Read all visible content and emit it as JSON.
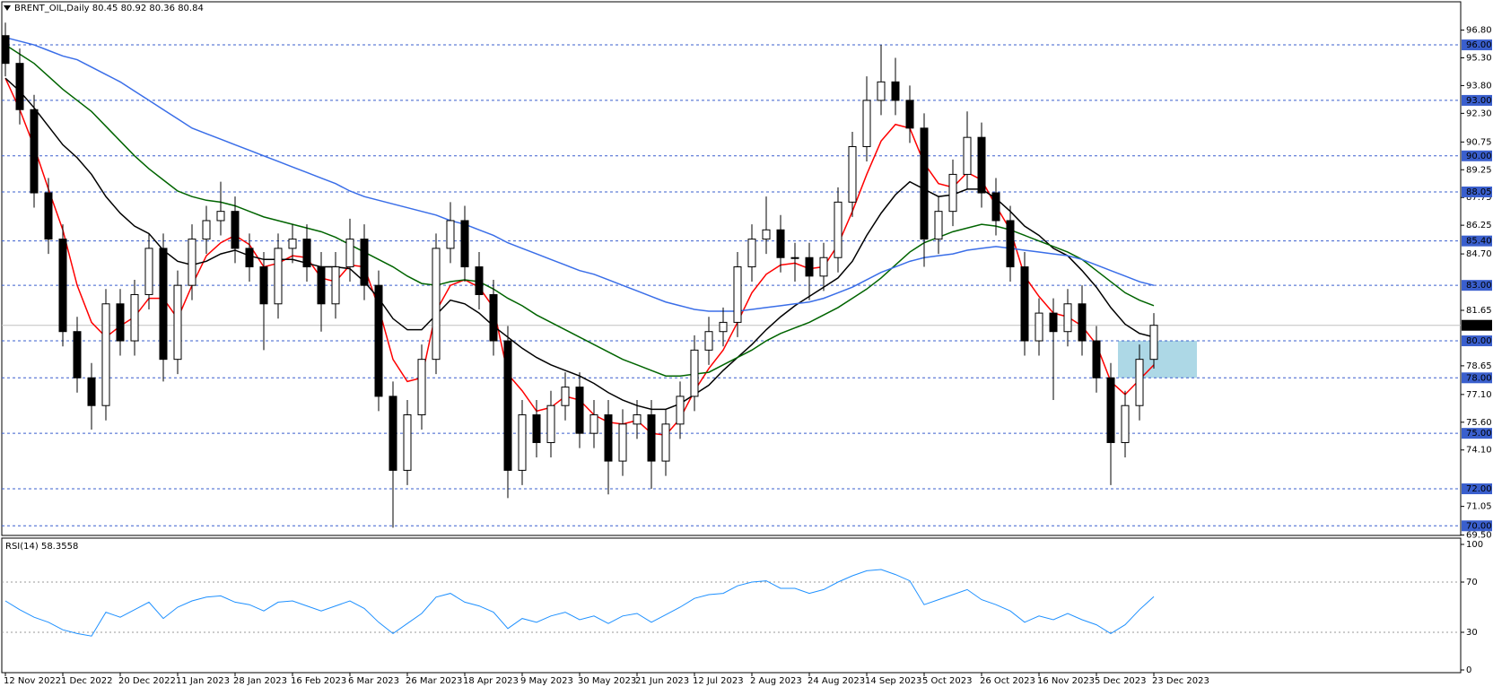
{
  "chart_data": {
    "type": "candlestick",
    "title": "BRENT_OIL,Daily 80.45 80.92 80.36 80.84",
    "categories": [
      "12 Nov 2022",
      null,
      null,
      null,
      "1 Dec 2022",
      null,
      null,
      null,
      "20 Dec 2022",
      null,
      null,
      null,
      "11 Jan 2023",
      null,
      null,
      null,
      "28 Jan 2023",
      null,
      null,
      null,
      "16 Feb 2023",
      null,
      null,
      null,
      "6 Mar 2023",
      null,
      null,
      null,
      "26 Mar 2023",
      null,
      null,
      null,
      "18 Apr 2023",
      null,
      null,
      null,
      "9 May 2023",
      null,
      null,
      null,
      "30 May 2023",
      null,
      null,
      null,
      "21 Jun 2023",
      null,
      null,
      null,
      "12 Jul 2023",
      null,
      null,
      null,
      "2 Aug 2023",
      null,
      null,
      null,
      "24 Aug 2023",
      null,
      null,
      null,
      "14 Sep 2023",
      null,
      null,
      null,
      "5 Oct 2023",
      null,
      null,
      null,
      "26 Oct 2023",
      null,
      null,
      null,
      "16 Nov 2023",
      null,
      null,
      null,
      "5 Dec 2023",
      null,
      null,
      null,
      "23 Dec 2023"
    ],
    "open": [
      96.5,
      95.0,
      92.5,
      88.0,
      85.5,
      80.5,
      78.0,
      76.5,
      82.0,
      80.0,
      82.5,
      85.0,
      79.0,
      83.0,
      85.5,
      86.5,
      87.0,
      85.0,
      84.0,
      82.0,
      85.0,
      85.5,
      84.0,
      82.0,
      84.0,
      85.5,
      83.0,
      77.0,
      73.0,
      76.0,
      79.0,
      85.0,
      86.5,
      84.0,
      82.5,
      80.0,
      73.0,
      76.0,
      74.5,
      76.5,
      77.5,
      75.0,
      76.0,
      73.5,
      75.5,
      76.0,
      73.5,
      75.5,
      77.0,
      79.5,
      80.5,
      81.0,
      84.0,
      85.5,
      86.0,
      84.5,
      84.5,
      83.5,
      84.5,
      87.5,
      90.5,
      93.0,
      94.0,
      93.0,
      91.5,
      85.5,
      87.0,
      89.0,
      91.0,
      88.0,
      86.5,
      84.0,
      80.0,
      81.5,
      80.5,
      82.0,
      80.0,
      78.0,
      74.5,
      76.5,
      79.0
    ],
    "high": [
      97.2,
      95.8,
      93.3,
      88.8,
      86.3,
      81.3,
      78.8,
      82.8,
      82.8,
      83.3,
      85.8,
      85.8,
      83.8,
      86.3,
      87.3,
      88.6,
      87.8,
      85.8,
      84.8,
      85.8,
      86.3,
      86.3,
      84.8,
      84.8,
      86.6,
      86.3,
      83.8,
      77.8,
      76.8,
      79.8,
      85.8,
      87.5,
      87.3,
      84.8,
      83.3,
      80.8,
      76.8,
      76.8,
      77.3,
      78.3,
      78.3,
      76.8,
      76.8,
      76.3,
      76.8,
      76.8,
      76.3,
      77.8,
      80.3,
      81.3,
      81.8,
      84.8,
      86.3,
      87.8,
      86.8,
      85.3,
      85.3,
      85.3,
      88.3,
      91.3,
      94.3,
      96.0,
      95.3,
      93.8,
      92.3,
      87.8,
      89.8,
      92.4,
      91.8,
      88.8,
      87.3,
      84.8,
      82.3,
      82.3,
      82.8,
      83.0,
      80.8,
      78.8,
      77.3,
      79.8,
      81.5
    ],
    "low": [
      94.3,
      91.7,
      87.2,
      84.7,
      79.7,
      77.2,
      75.2,
      75.7,
      79.2,
      79.2,
      81.7,
      77.8,
      78.2,
      82.2,
      84.7,
      85.7,
      84.2,
      83.2,
      79.5,
      81.2,
      84.2,
      83.2,
      80.5,
      81.2,
      83.2,
      82.2,
      76.2,
      69.9,
      72.2,
      75.2,
      78.2,
      84.2,
      83.2,
      81.7,
      79.2,
      71.5,
      72.2,
      73.7,
      73.7,
      75.7,
      74.2,
      74.2,
      71.7,
      72.7,
      74.7,
      72.0,
      72.7,
      74.7,
      76.2,
      78.7,
      79.7,
      80.2,
      83.2,
      84.7,
      83.7,
      83.2,
      82.2,
      82.7,
      83.7,
      86.7,
      89.7,
      92.2,
      92.2,
      90.7,
      84.0,
      84.7,
      86.2,
      88.2,
      87.2,
      85.7,
      83.2,
      79.2,
      79.2,
      76.8,
      79.7,
      79.2,
      77.2,
      72.2,
      73.7,
      75.7,
      78.5
    ],
    "close": [
      95.0,
      92.5,
      88.0,
      85.5,
      80.5,
      78.0,
      76.5,
      82.0,
      80.0,
      82.5,
      85.0,
      79.0,
      83.0,
      85.5,
      86.5,
      87.0,
      85.0,
      84.0,
      82.0,
      85.0,
      85.5,
      84.0,
      82.0,
      84.0,
      85.5,
      83.0,
      77.0,
      73.0,
      76.0,
      79.0,
      85.0,
      86.5,
      84.0,
      82.5,
      80.0,
      73.0,
      76.0,
      74.5,
      76.5,
      77.5,
      75.0,
      76.0,
      73.5,
      75.5,
      76.0,
      73.5,
      75.5,
      77.0,
      79.5,
      80.5,
      81.0,
      84.0,
      85.5,
      86.0,
      84.5,
      84.5,
      83.5,
      84.5,
      87.5,
      90.5,
      93.0,
      94.0,
      93.0,
      91.5,
      85.5,
      87.0,
      89.0,
      91.0,
      88.0,
      86.5,
      84.0,
      80.0,
      81.5,
      80.5,
      82.0,
      80.0,
      78.0,
      74.5,
      76.5,
      79.0,
      80.84
    ],
    "ma": [
      {
        "color": "#ff0000",
        "values": [
          94.2,
          92.5,
          90.5,
          88.2,
          86.0,
          83.0,
          81.0,
          80.2,
          80.8,
          81.3,
          82.3,
          82.3,
          81.2,
          83.0,
          84.6,
          85.3,
          85.7,
          85.2,
          84.0,
          84.2,
          84.6,
          84.5,
          83.4,
          83.2,
          84.1,
          84.0,
          81.8,
          79.0,
          77.8,
          78.0,
          81.6,
          83.0,
          83.3,
          82.9,
          81.8,
          78.2,
          77.3,
          76.2,
          76.4,
          77.0,
          76.8,
          76.0,
          75.6,
          75.5,
          75.7,
          75.0,
          74.9,
          75.8,
          77.3,
          78.5,
          79.5,
          81.0,
          82.6,
          83.6,
          84.1,
          84.2,
          83.9,
          84.0,
          85.2,
          87.0,
          89.0,
          90.8,
          91.7,
          91.5,
          89.6,
          88.5,
          88.3,
          89.1,
          88.7,
          87.3,
          86.0,
          83.5,
          82.4,
          81.5,
          81.3,
          80.8,
          79.8,
          77.8,
          77.1,
          77.9,
          78.7
        ]
      },
      {
        "color": "#000000",
        "values": [
          94.2,
          93.5,
          92.6,
          91.6,
          90.6,
          89.9,
          89.0,
          87.8,
          86.9,
          86.2,
          85.8,
          84.9,
          84.3,
          84.1,
          84.3,
          84.7,
          84.9,
          84.6,
          84.4,
          84.4,
          84.4,
          84.2,
          84.0,
          84.0,
          83.9,
          83.2,
          82.3,
          81.2,
          80.6,
          80.6,
          81.4,
          82.2,
          82.0,
          81.5,
          80.8,
          80.2,
          79.6,
          79.1,
          78.7,
          78.4,
          78.1,
          77.7,
          77.2,
          76.8,
          76.5,
          76.3,
          76.3,
          76.6,
          77.1,
          77.6,
          78.4,
          79.1,
          79.8,
          80.6,
          81.3,
          81.9,
          82.4,
          82.9,
          83.4,
          84.3,
          85.7,
          86.9,
          87.9,
          88.6,
          88.2,
          87.8,
          87.9,
          88.2,
          88.2,
          87.7,
          87.0,
          86.2,
          85.7,
          85.0,
          84.6,
          83.8,
          82.9,
          81.8,
          80.9,
          80.4,
          80.2
        ]
      },
      {
        "color": "#006400",
        "values": [
          96.0,
          95.5,
          95.0,
          94.3,
          93.6,
          93.0,
          92.4,
          91.6,
          90.8,
          90.0,
          89.3,
          88.7,
          88.1,
          87.8,
          87.6,
          87.5,
          87.3,
          87.0,
          86.7,
          86.5,
          86.3,
          86.1,
          85.9,
          85.6,
          85.2,
          84.8,
          84.4,
          84.0,
          83.5,
          83.1,
          83.0,
          83.2,
          83.3,
          83.2,
          82.8,
          82.3,
          81.9,
          81.4,
          81.0,
          80.6,
          80.2,
          79.8,
          79.4,
          79.0,
          78.7,
          78.4,
          78.1,
          78.1,
          78.2,
          78.3,
          78.7,
          79.1,
          79.5,
          80.0,
          80.4,
          80.7,
          81.0,
          81.4,
          81.8,
          82.3,
          82.8,
          83.4,
          84.1,
          84.8,
          85.3,
          85.6,
          85.9,
          86.1,
          86.3,
          86.2,
          86.0,
          85.7,
          85.4,
          85.1,
          84.8,
          84.4,
          83.8,
          83.2,
          82.6,
          82.2,
          81.9
        ]
      },
      {
        "color": "#3a6ee8",
        "values": [
          96.4,
          96.2,
          96.0,
          95.7,
          95.4,
          95.2,
          94.8,
          94.4,
          94.0,
          93.5,
          93.0,
          92.5,
          92.0,
          91.5,
          91.2,
          90.9,
          90.6,
          90.3,
          90.0,
          89.7,
          89.4,
          89.1,
          88.8,
          88.5,
          88.1,
          87.8,
          87.6,
          87.4,
          87.2,
          87.0,
          86.8,
          86.5,
          86.3,
          86.0,
          85.7,
          85.3,
          85.0,
          84.7,
          84.4,
          84.1,
          83.8,
          83.6,
          83.3,
          83.0,
          82.7,
          82.4,
          82.1,
          81.9,
          81.7,
          81.6,
          81.6,
          81.6,
          81.7,
          81.8,
          81.9,
          82.0,
          82.1,
          82.3,
          82.6,
          82.9,
          83.3,
          83.7,
          84.0,
          84.3,
          84.5,
          84.6,
          84.7,
          84.9,
          85.0,
          85.1,
          85.0,
          84.9,
          84.8,
          84.7,
          84.6,
          84.4,
          84.1,
          83.8,
          83.5,
          83.2,
          83.0
        ]
      }
    ],
    "ylim": [
      69.48,
      98.33
    ],
    "yticks": [
      {
        "value": 96.8,
        "label": "96.80"
      },
      {
        "value": 95.3,
        "label": "95.30"
      },
      {
        "value": 93.8,
        "label": "93.80"
      },
      {
        "value": 92.3,
        "label": "92.30"
      },
      90.75,
      89.25,
      87.75,
      86.25,
      {
        "value": 84.7,
        "label": "84.70"
      },
      81.65,
      78.65,
      {
        "value": 77.1,
        "label": "77.10"
      },
      {
        "value": 75.6,
        "label": "75.60"
      },
      {
        "value": 74.1,
        "label": "74.10"
      },
      71.05,
      {
        "value": 69.5,
        "label": "69.50"
      }
    ],
    "levels": [
      {
        "value": 96,
        "label": "96.00"
      },
      {
        "value": 93,
        "label": "93.00"
      },
      {
        "value": 90,
        "label": "90.00"
      },
      {
        "value": 88.05,
        "label": "88.05"
      },
      {
        "value": 85.4,
        "label": "85.40"
      },
      {
        "value": 83,
        "label": "83.00"
      },
      {
        "value": 80,
        "label": "80.00"
      },
      {
        "value": 78,
        "label": "78.00"
      },
      {
        "value": 75,
        "label": "75.00"
      },
      {
        "value": 72,
        "label": "72.00"
      },
      {
        "value": 70,
        "label": "70.00"
      }
    ],
    "level_color": "#3a5fcd",
    "last_price": 80.84,
    "zone": {
      "y": [
        78,
        80
      ],
      "color": "#add8e6"
    },
    "rsi": {
      "label": "RSI(14) 58.3558",
      "color": "#1e90ff",
      "values": [
        55,
        48,
        42,
        38,
        32,
        29,
        27,
        46,
        42,
        48,
        54,
        41,
        50,
        55,
        58,
        59,
        54,
        52,
        47,
        54,
        55,
        51,
        47,
        51,
        55,
        49,
        38,
        29,
        37,
        45,
        58,
        61,
        54,
        51,
        46,
        33,
        41,
        38,
        43,
        46,
        40,
        43,
        37,
        43,
        45,
        38,
        44,
        50,
        57,
        60,
        61,
        67,
        70,
        71,
        65,
        65,
        61,
        64,
        70,
        75,
        79,
        80,
        76,
        71,
        52,
        56,
        60,
        64,
        56,
        52,
        47,
        38,
        43,
        40,
        45,
        40,
        36,
        29,
        36,
        48,
        58.36
      ],
      "ylim": [
        0,
        100
      ],
      "yticks": [
        100,
        70,
        30,
        0
      ],
      "levels": [
        70,
        30
      ]
    }
  }
}
